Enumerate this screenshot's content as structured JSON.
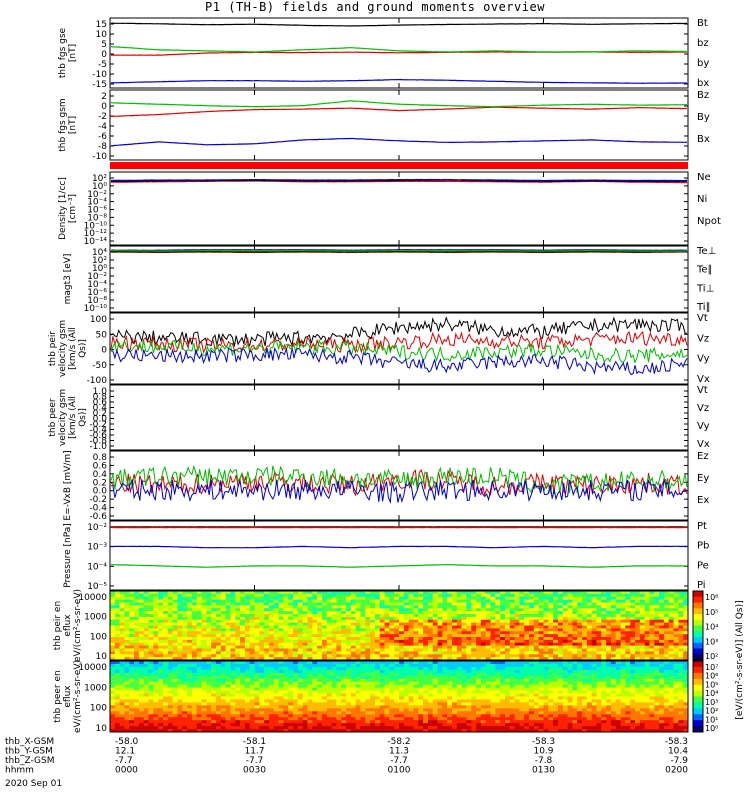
{
  "title": "P1 (TH-B) fields and ground moments overview",
  "footer": {
    "rows": [
      {
        "label": "thb_X-GSM",
        "values": [
          "-58.0",
          "-58.1",
          "-58.2",
          "-58.3",
          "-58.3"
        ]
      },
      {
        "label": "thb_Y-GSM",
        "values": [
          "12.1",
          "11.7",
          "11.3",
          "10.9",
          "10.4"
        ]
      },
      {
        "label": "thb_Z-GSM",
        "values": [
          "-7.7",
          "-7.7",
          "-7.7",
          "-7.8",
          "-7.9"
        ]
      },
      {
        "label": "hhmm",
        "values": [
          "0000",
          "0030",
          "0100",
          "0130",
          "0200"
        ]
      }
    ],
    "date": "2020 Sep 01"
  },
  "colorbar": {
    "label": "[eV/(cm²-s-sr-eV)] (All Qs)]",
    "ticks_top": [
      "10⁶",
      "10⁵",
      "10⁴",
      "10³",
      "10²"
    ],
    "ticks_bottom": [
      "10⁷",
      "10⁶",
      "10⁵",
      "10⁴",
      "10³",
      "10²",
      "10¹",
      "10⁰"
    ]
  },
  "chart_data": [
    {
      "type": "line",
      "ylabel": "thb fgs gse [nT]",
      "yticks": [
        "15",
        "10",
        "5",
        "0",
        "-5",
        "-10",
        "-15"
      ],
      "ylim": [
        -15,
        16
      ],
      "series": [
        {
          "name": "Bt",
          "color": "#000000",
          "y": [
            14.5,
            14.2,
            13.8,
            14.0,
            13.5,
            13.2,
            13.6,
            13.9,
            14.1,
            14.3,
            14.0,
            14.2,
            14.4
          ]
        },
        {
          "name": "bz",
          "color": "#dd0000",
          "y": [
            -0.5,
            -0.5,
            0.5,
            0.8,
            0.7,
            0.9,
            0.6,
            0.8,
            1.0,
            0.9,
            1.0,
            0.8,
            1.0
          ]
        },
        {
          "name": "by",
          "color": "#00bb00",
          "y": [
            3.5,
            2.0,
            1.5,
            1.0,
            2.0,
            3.0,
            1.5,
            1.0,
            1.5,
            1.0,
            1.0,
            1.5,
            1.2
          ]
        },
        {
          "name": "bx",
          "color": "#0000cc",
          "y": [
            -13.5,
            -13.0,
            -12.5,
            -12.5,
            -12.8,
            -12.5,
            -12.0,
            -12.3,
            -12.8,
            -13.3,
            -13.5,
            -13.7,
            -13.6
          ]
        }
      ]
    },
    {
      "type": "line",
      "ylabel": "thb fgs gsm [nT]",
      "yticks": [
        "2",
        "0",
        "-2",
        "-4",
        "-6",
        "-8",
        "-10"
      ],
      "ylim": [
        -10.5,
        3
      ],
      "series": [
        {
          "name": "Bz",
          "color": "#dd0000",
          "y": [
            -2.0,
            -1.6,
            -1.0,
            -0.6,
            -0.5,
            -0.3,
            -0.8,
            -0.5,
            -0.1,
            -0.3,
            -0.5,
            -0.2,
            -0.4
          ]
        },
        {
          "name": "By",
          "color": "#00bb00",
          "y": [
            0.8,
            0.5,
            0.2,
            0.0,
            0.2,
            1.2,
            0.5,
            0.2,
            0.0,
            0.3,
            0.5,
            0.3,
            0.4
          ]
        },
        {
          "name": "Bx",
          "color": "#0000cc",
          "y": [
            -8.0,
            -7.2,
            -7.8,
            -7.6,
            -6.8,
            -6.5,
            -7.0,
            -7.3,
            -7.2,
            -7.0,
            -6.8,
            -7.2,
            -7.3
          ]
        }
      ]
    },
    {
      "type": "line",
      "ylabel": "Density [1/cc] [cm⁻³]",
      "yticks": [
        "10²",
        "10⁰",
        "10⁻²",
        "10⁻⁴",
        "10⁻⁶",
        "10⁻⁸",
        "10⁻¹⁰",
        "10⁻¹²",
        "10⁻¹⁴"
      ],
      "ylim": [
        -14,
        2
      ],
      "yscale": "log",
      "series": [
        {
          "name": "Ne",
          "color": "#dd0000",
          "y": [
            0.1,
            0.2,
            0.3,
            0.4,
            0.2,
            0.2,
            0.3,
            0.3,
            0.2,
            0.1,
            0.3,
            0.1,
            0.0
          ]
        },
        {
          "name": "Ni",
          "color": "#000000",
          "y": [
            0.3,
            0.4,
            0.5,
            0.5,
            0.4,
            0.4,
            0.5,
            0.6,
            0.4,
            0.3,
            0.4,
            0.3,
            0.3
          ]
        },
        {
          "name": "Npot",
          "color": "#0000cc",
          "y": [
            0.5,
            0.6,
            0.6,
            0.7,
            0.6,
            0.6,
            0.7,
            0.7,
            0.6,
            0.5,
            0.6,
            0.5,
            0.5
          ]
        }
      ]
    },
    {
      "type": "line",
      "ylabel": "magt3 [eV]",
      "yticks": [
        "10⁴",
        "10²",
        "10⁰",
        "10⁻²",
        "10⁻⁴",
        "10⁻⁶",
        "10⁻⁸",
        "10⁻¹⁰"
      ],
      "ylim": [
        -10,
        4
      ],
      "yscale": "log",
      "series": [
        {
          "name": "Te⊥",
          "color": "#dd0000",
          "y": [
            3.1,
            3.0,
            3.1,
            3.0,
            3.1,
            3.0,
            3.1,
            3.0,
            3.1,
            3.0,
            3.1,
            3.0,
            3.1
          ]
        },
        {
          "name": "Te∥",
          "color": "#000000",
          "y": [
            3.2,
            3.1,
            3.2,
            3.1,
            3.2,
            3.1,
            3.2,
            3.1,
            3.2,
            3.1,
            3.2,
            3.1,
            3.2
          ]
        },
        {
          "name": "Ti⊥",
          "color": "#0000cc",
          "y": [
            3.5,
            3.5,
            3.6,
            3.6,
            3.6,
            3.5,
            3.6,
            3.6,
            3.6,
            3.5,
            3.6,
            3.5,
            3.5
          ]
        },
        {
          "name": "Ti∥",
          "color": "#00bb00",
          "y": [
            3.4,
            3.3,
            3.4,
            3.4,
            3.4,
            3.3,
            3.4,
            3.4,
            3.4,
            3.3,
            3.4,
            3.3,
            3.3
          ]
        }
      ]
    },
    {
      "type": "line",
      "ylabel": "thb peir velocity gsm [km/s (All Qs)]",
      "yticks": [
        "100",
        "50",
        "0",
        "-50",
        "-100"
      ],
      "ylim": [
        -110,
        110
      ],
      "series": [
        {
          "name": "Vt",
          "color": "#000000",
          "y": [
            40,
            35,
            30,
            30,
            35,
            45,
            70,
            80,
            60,
            55,
            75,
            80,
            70
          ]
        },
        {
          "name": "Vz",
          "color": "#dd0000",
          "y": [
            20,
            15,
            10,
            10,
            15,
            10,
            20,
            30,
            25,
            20,
            30,
            35,
            30
          ]
        },
        {
          "name": "Vy",
          "color": "#00bb00",
          "y": [
            10,
            5,
            0,
            0,
            5,
            0,
            -10,
            -20,
            -10,
            -5,
            -20,
            -25,
            -15
          ]
        },
        {
          "name": "Vx",
          "color": "#0000cc",
          "y": [
            -20,
            -25,
            -25,
            -20,
            -20,
            -30,
            -50,
            -60,
            -45,
            -40,
            -60,
            -70,
            -50
          ]
        }
      ]
    },
    {
      "type": "line",
      "ylabel": "thb peer velocity gsm [km/s (All Qs)]",
      "yticks": [
        "1.0",
        "0.8",
        "0.6",
        "0.4",
        "0.2",
        "0.0",
        "-0.2",
        "-0.4",
        "-0.6",
        "-0.8",
        "-1.0"
      ],
      "ylim": [
        -1,
        1
      ],
      "series": [
        {
          "name": "Vt",
          "color": "#000000",
          "y": []
        },
        {
          "name": "Vz",
          "color": "#dd0000",
          "y": []
        },
        {
          "name": "Vy",
          "color": "#00bb00",
          "y": []
        },
        {
          "name": "Vx",
          "color": "#0000cc",
          "y": []
        }
      ]
    },
    {
      "type": "line",
      "ylabel": "E=-VxB [mV/m]",
      "yticks": [
        "0.8",
        "0.6",
        "0.4",
        "0.2",
        "0.0",
        "-0.2",
        "-0.4",
        "-0.6"
      ],
      "ylim": [
        -0.6,
        0.8
      ],
      "series": [
        {
          "name": "Ez",
          "color": "#dd0000",
          "y": [
            0.15,
            0.1,
            0.15,
            0.2,
            0.15,
            0.1,
            0.25,
            0.2,
            0.1,
            0.15,
            0.1,
            0.15,
            0.1
          ]
        },
        {
          "name": "Ey",
          "color": "#00bb00",
          "y": [
            0.2,
            0.3,
            0.3,
            0.3,
            0.3,
            0.25,
            0.2,
            0.3,
            0.3,
            0.1,
            0.15,
            0.2,
            0.2
          ]
        },
        {
          "name": "Ex",
          "color": "#0000cc",
          "y": [
            0.0,
            0.0,
            0.0,
            0.0,
            0.0,
            0.0,
            -0.05,
            0.0,
            0.0,
            0.0,
            0.0,
            0.0,
            0.0
          ]
        }
      ]
    },
    {
      "type": "line",
      "ylabel": "Pressure [nPa]",
      "yticks": [
        "10⁻²",
        "10⁻³",
        "10⁻⁴",
        "10⁻⁵"
      ],
      "ylim": [
        -6,
        -1
      ],
      "yscale": "log",
      "series": [
        {
          "name": "Pt",
          "color": "#000000",
          "y": [
            -1.3,
            -1.3,
            -1.3,
            -1.3,
            -1.3,
            -1.3,
            -1.3,
            -1.3,
            -1.3,
            -1.3,
            -1.3,
            -1.3,
            -1.3
          ]
        },
        {
          "name": "Pb",
          "color": "#dd0000",
          "y": [
            -1.35,
            -1.35,
            -1.35,
            -1.35,
            -1.35,
            -1.35,
            -1.35,
            -1.35,
            -1.35,
            -1.35,
            -1.35,
            -1.35,
            -1.35
          ]
        },
        {
          "name": "Pe",
          "color": "#00bb00",
          "y": [
            -4.2,
            -4.3,
            -4.4,
            -4.3,
            -4.3,
            -4.4,
            -4.3,
            -4.2,
            -4.3,
            -4.3,
            -4.4,
            -4.3,
            -4.3
          ]
        },
        {
          "name": "Pi",
          "color": "#0000cc",
          "y": [
            -2.8,
            -2.8,
            -2.9,
            -2.9,
            -2.8,
            -2.9,
            -2.8,
            -2.8,
            -2.9,
            -2.8,
            -2.9,
            -2.8,
            -2.8
          ]
        }
      ]
    },
    {
      "type": "heatmap",
      "ylabel": "thb peir en eflux eV/(cm²-s-sr-eV)",
      "yticks": [
        "10000",
        "1000",
        "100",
        "10"
      ],
      "ylim": [
        10,
        20000
      ],
      "yscale": "log"
    },
    {
      "type": "heatmap",
      "ylabel": "thb peer en eflux eV/(cm²-s-sr-eV)",
      "yticks": [
        "10000",
        "1000",
        "100",
        "10"
      ],
      "ylim": [
        10,
        20000
      ],
      "yscale": "log"
    }
  ]
}
